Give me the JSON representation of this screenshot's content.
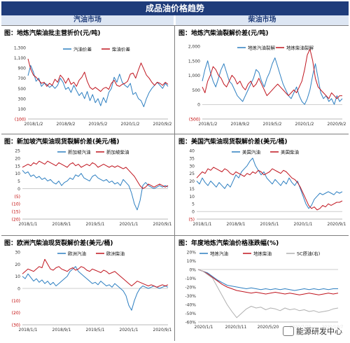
{
  "header": {
    "title": "成品油价格趋势",
    "left_column": "汽油市场",
    "right_column": "柴油市场"
  },
  "watermark": "能源研发中心",
  "colors": {
    "blue": "#2d7fc1",
    "red": "#c0151f",
    "gray": "#b0b0b0",
    "header_bg": "#1f3c7a"
  },
  "charts": [
    {
      "id": "p1",
      "title": "图：地炼汽柴油批主营折价(元/吨)",
      "chart_data": {
        "type": "line",
        "ylim": [
          -100,
          1300
        ],
        "yticks": [
          1300,
          1100,
          900,
          700,
          500,
          300,
          100,
          -100
        ],
        "ytick_labels": [
          "1,300",
          "1,100",
          "900",
          "700",
          "500",
          "300",
          "100",
          "(100)"
        ],
        "xtick_labels": [
          "2018/1/2",
          "2018/9/2",
          "2019/5/2",
          "2020/1/2",
          "2020/9/2"
        ],
        "series": [
          {
            "name": "汽油价差",
            "color": "#2d7fc1",
            "values": [
              750,
              950,
              820,
              640,
              700,
              540,
              600,
              580,
              520,
              560,
              500,
              560,
              700,
              620,
              480,
              520,
              420,
              560,
              460,
              360,
              420,
              300,
              440,
              260,
              380,
              220,
              300,
              160,
              320,
              220,
              420,
              500,
              720,
              620,
              780,
              620,
              560,
              520,
              600,
              380,
              420,
              300,
              260,
              140,
              300,
              420,
              500,
              560,
              620,
              560,
              500,
              600,
              540
            ]
          },
          {
            "name": "柴油价差",
            "color": "#c0151f",
            "values": [
              1080,
              880,
              760,
              720,
              660,
              600,
              620,
              540,
              600,
              560,
              680,
              620,
              760,
              700,
              600,
              700,
              580,
              620,
              540,
              660,
              720,
              820,
              640,
              520,
              480,
              520,
              480,
              440,
              500,
              520,
              480,
              600,
              660,
              560,
              540,
              580,
              600,
              640,
              780,
              800,
              700,
              860,
              1000,
              880,
              760,
              700,
              620,
              560,
              620,
              600,
              560,
              620,
              580
            ]
          }
        ]
      }
    },
    {
      "id": "p2",
      "title": "图：地炼汽柴油裂解价差(元/吨)",
      "chart_data": {
        "type": "line",
        "ylim": [
          -500,
          2000
        ],
        "yticks": [
          2000,
          1500,
          1000,
          500,
          0,
          -500
        ],
        "ytick_labels": [
          "2,000",
          "1,500",
          "1,000",
          "500",
          "0",
          "(500)"
        ],
        "xtick_labels": [
          "2018/1/2",
          "2018/9/2",
          "2019/5/2",
          "2020/1/2",
          "2020/9/2"
        ],
        "series": [
          {
            "name": "地炼汽油裂解",
            "color": "#2d7fc1",
            "values": [
              800,
              1200,
              1500,
              1100,
              800,
              600,
              900,
              1200,
              1400,
              1100,
              800,
              700,
              500,
              300,
              200,
              100,
              300,
              500,
              700,
              900,
              1200,
              1100,
              800,
              600,
              900,
              1100,
              1400,
              1600,
              1300,
              1000,
              700,
              500,
              300,
              200,
              400,
              600,
              300,
              100,
              0,
              200,
              500,
              1000,
              1400,
              900,
              400,
              200,
              300,
              100,
              200,
              0,
              300,
              100,
              200
            ]
          },
          {
            "name": "地炼柴油裂解",
            "color": "#c0151f",
            "values": [
              600,
              400,
              800,
              1000,
              1300,
              1200,
              1000,
              900,
              700,
              600,
              800,
              1000,
              900,
              700,
              800,
              600,
              500,
              700,
              800,
              600,
              700,
              900,
              700,
              500,
              300,
              400,
              500,
              600,
              700,
              600,
              500,
              400,
              300,
              400,
              500,
              400,
              600,
              800,
              1200,
              1700,
              1900,
              1500,
              900,
              600,
              500,
              400,
              300,
              200,
              400,
              300,
              200,
              300,
              300
            ]
          }
        ]
      }
    },
    {
      "id": "p3",
      "title": "图：新加坡汽柴油现货裂解价差(美元/桶)",
      "chart_data": {
        "type": "line",
        "ylim": [
          -20,
          25
        ],
        "yticks": [
          25,
          20,
          15,
          10,
          5,
          0,
          -5,
          -10,
          -15,
          -20
        ],
        "ytick_labels": [
          "25",
          "20",
          "15",
          "10",
          "5",
          "0",
          "(5)",
          "(10)",
          "(15)",
          "(20)"
        ],
        "xtick_labels": [
          "2018/1/1",
          "2018/9/1",
          "2019/5/1",
          "2020/1/1",
          "2020/9/1"
        ],
        "series": [
          {
            "name": "新加坡汽油",
            "color": "#2d7fc1",
            "values": [
              12,
              10,
              11,
              8,
              9,
              7,
              8,
              6,
              7,
              5,
              6,
              4,
              3,
              5,
              2,
              4,
              5,
              7,
              6,
              9,
              8,
              10,
              7,
              6,
              5,
              8,
              9,
              7,
              6,
              5,
              6,
              4,
              5,
              3,
              4,
              2,
              6,
              4,
              2,
              -3,
              -10,
              -14,
              -8,
              2,
              4,
              2,
              1,
              0,
              1,
              2,
              1,
              2,
              1
            ]
          },
          {
            "name": "新加坡柴油",
            "color": "#c0151f",
            "values": [
              14,
              15,
              16,
              15,
              17,
              16,
              18,
              17,
              16,
              18,
              17,
              16,
              15,
              17,
              16,
              15,
              14,
              16,
              17,
              15,
              16,
              14,
              15,
              16,
              15,
              17,
              16,
              14,
              15,
              16,
              15,
              14,
              15,
              14,
              15,
              14,
              13,
              14,
              12,
              10,
              8,
              5,
              2,
              0,
              1,
              3,
              2,
              1,
              2,
              3,
              2,
              1,
              2
            ]
          }
        ]
      }
    },
    {
      "id": "p4",
      "title": "图：美国汽柴油现货裂解价差(美元/桶)",
      "chart_data": {
        "type": "line",
        "ylim": [
          -5,
          40
        ],
        "yticks": [
          40,
          35,
          30,
          25,
          20,
          15,
          10,
          5,
          0,
          -5
        ],
        "ytick_labels": [
          "40",
          "35",
          "30",
          "25",
          "20",
          "15",
          "10",
          "5",
          "0",
          "(5)"
        ],
        "xtick_labels": [
          "2018/1/1",
          "2018/9/1",
          "2019/5/1",
          "2020/1/1",
          "2020/9/1"
        ],
        "series": [
          {
            "name": "美国汽油",
            "color": "#2d7fc1",
            "values": [
              20,
              18,
              22,
              19,
              17,
              20,
              18,
              16,
              19,
              17,
              15,
              18,
              16,
              20,
              24,
              22,
              26,
              28,
              30,
              33,
              35,
              30,
              27,
              24,
              26,
              22,
              20,
              18,
              21,
              19,
              17,
              20,
              18,
              22,
              19,
              17,
              20,
              15,
              10,
              5,
              2,
              4,
              8,
              10,
              12,
              11,
              12,
              13,
              12,
              11,
              13,
              12,
              13
            ]
          },
          {
            "name": "美国柴油",
            "color": "#c0151f",
            "values": [
              22,
              24,
              26,
              25,
              28,
              27,
              29,
              28,
              27,
              26,
              28,
              27,
              25,
              24,
              26,
              25,
              24,
              23,
              25,
              24,
              26,
              25,
              27,
              26,
              24,
              25,
              26,
              28,
              27,
              26,
              25,
              27,
              26,
              24,
              22,
              21,
              19,
              16,
              12,
              8,
              4,
              2,
              3,
              1,
              2,
              4,
              3,
              5,
              4,
              5,
              6,
              6,
              7
            ]
          }
        ]
      }
    },
    {
      "id": "p5",
      "title": "图：欧洲汽柴油现货裂解价差(美元/桶)",
      "chart_data": {
        "type": "line",
        "ylim": [
          -30,
          30
        ],
        "yticks": [
          30,
          20,
          10,
          0,
          -10,
          -20,
          -30
        ],
        "ytick_labels": [
          "30",
          "20",
          "10",
          "0",
          "(10)",
          "(20)",
          "(30)"
        ],
        "xtick_labels": [
          "2018/1/1",
          "2018/9/1",
          "2019/5/1",
          "2020/1/1",
          "2020/9/1"
        ],
        "series": [
          {
            "name": "欧洲汽油",
            "color": "#2d7fc1",
            "values": [
              10,
              8,
              12,
              9,
              6,
              8,
              5,
              7,
              4,
              6,
              3,
              5,
              2,
              4,
              6,
              8,
              10,
              14,
              16,
              18,
              14,
              12,
              10,
              8,
              6,
              4,
              5,
              3,
              6,
              4,
              2,
              3,
              1,
              4,
              2,
              0,
              -2,
              -6,
              -14,
              -18,
              -10,
              -4,
              0,
              2,
              1,
              0,
              1,
              2,
              1,
              0,
              1,
              2,
              1
            ]
          },
          {
            "name": "欧洲柴油",
            "color": "#c0151f",
            "values": [
              12,
              14,
              16,
              15,
              14,
              16,
              18,
              17,
              24,
              20,
              16,
              15,
              17,
              18,
              16,
              15,
              14,
              16,
              17,
              15,
              16,
              18,
              17,
              15,
              14,
              16,
              15,
              14,
              13,
              15,
              14,
              12,
              13,
              14,
              12,
              10,
              8,
              6,
              4,
              2,
              4,
              6,
              5,
              4,
              3,
              2,
              3,
              2,
              1,
              2,
              3,
              2,
              3
            ]
          }
        ]
      }
    },
    {
      "id": "p6",
      "title": "图：年度地炼汽柴油价格涨跌幅(%)",
      "chart_data": {
        "type": "line",
        "ylim": [
          -60,
          20
        ],
        "yticks": [
          20,
          10,
          0,
          -10,
          -20,
          -30,
          -40,
          -50,
          -60
        ],
        "ytick_labels": [
          "20%",
          "10%",
          "0%",
          "-10%",
          "-20%",
          "-30%",
          "-40%",
          "-50%",
          "-60%"
        ],
        "xtick_labels": [
          "2020/1/1",
          "2020/3/11",
          "2020/5/20",
          "2020/7/29",
          "2020/10/7"
        ],
        "series": [
          {
            "name": "地炼汽油",
            "color": "#2d7fc1",
            "values": [
              0,
              -2,
              -4,
              -8,
              -12,
              -15,
              -18,
              -19,
              -20,
              -21,
              -22,
              -21,
              -22,
              -23,
              -22,
              -23,
              -22,
              -23,
              -22,
              -23,
              -24,
              -23,
              -22,
              -23,
              -22,
              -23,
              -22,
              -23,
              -22,
              -22
            ]
          },
          {
            "name": "地炼柴油",
            "color": "#c0151f",
            "values": [
              0,
              -2,
              -5,
              -9,
              -13,
              -17,
              -20,
              -22,
              -24,
              -25,
              -26,
              -27,
              -26,
              -27,
              -28,
              -27,
              -26,
              -27,
              -28,
              -27,
              -28,
              -29,
              -28,
              -27,
              -28,
              -29,
              -28,
              -27,
              -28,
              -27
            ]
          },
          {
            "name": "SC原油(右)",
            "color": "#b0b0b0",
            "values": [
              0,
              -2,
              -6,
              -10,
              -20,
              -30,
              -40,
              -48,
              -55,
              -50,
              -45,
              -42,
              -44,
              -43,
              -46,
              -44,
              -45,
              -47,
              -44,
              -46,
              -45,
              -47,
              -46,
              -48,
              -47,
              -49,
              -48,
              -47,
              -45,
              -44
            ]
          }
        ]
      }
    }
  ]
}
